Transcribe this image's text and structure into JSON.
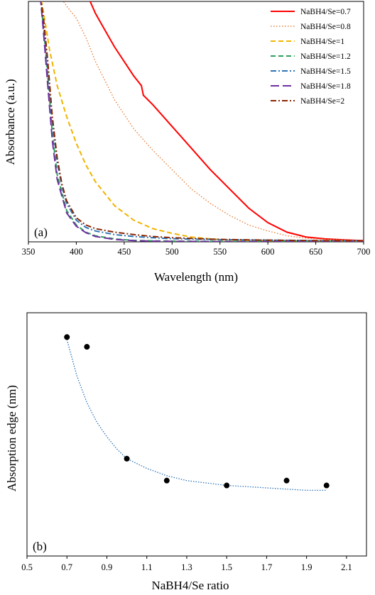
{
  "chart_data": [
    {
      "type": "line",
      "panel_label": "(a)",
      "xlabel": "Wavelength (nm)",
      "ylabel": "Absorbance (a.u.)",
      "xlim": [
        350,
        700
      ],
      "x_ticks": [
        "350",
        "400",
        "450",
        "500",
        "550",
        "600",
        "650",
        "700"
      ],
      "y_ticks": [],
      "grid": false,
      "legend_position": "top-right",
      "series": [
        {
          "name": "NaBH4/Se=0.7",
          "color": "#ff0000",
          "dash": "solid",
          "x": [
            362,
            365,
            370,
            380,
            390,
            405,
            410,
            420,
            430,
            440,
            450,
            460,
            468,
            470,
            480,
            500,
            520,
            540,
            560,
            580,
            600,
            620,
            640,
            660,
            680,
            700
          ],
          "y": [
            1.06,
            1.05,
            1.06,
            1.06,
            1.05,
            1.06,
            1.04,
            0.95,
            0.88,
            0.81,
            0.75,
            0.69,
            0.65,
            0.61,
            0.57,
            0.48,
            0.39,
            0.3,
            0.22,
            0.14,
            0.08,
            0.04,
            0.02,
            0.012,
            0.008,
            0.005
          ]
        },
        {
          "name": "NaBH4/Se=0.8",
          "color": "#e8823c",
          "dash": "dotted",
          "x": [
            355,
            360,
            370,
            375,
            380,
            390,
            400,
            410,
            420,
            440,
            460,
            480,
            500,
            520,
            540,
            560,
            580,
            600,
            620,
            640,
            660,
            700
          ],
          "y": [
            1.05,
            1.04,
            1.05,
            1.02,
            1.04,
            0.98,
            0.93,
            0.85,
            0.75,
            0.59,
            0.47,
            0.38,
            0.3,
            0.22,
            0.16,
            0.11,
            0.07,
            0.045,
            0.025,
            0.015,
            0.01,
            0.005
          ]
        },
        {
          "name": "NaBH4/Se=1",
          "color": "#f0b400",
          "dash": "dashed",
          "x": [
            355,
            362,
            368,
            372,
            380,
            390,
            400,
            410,
            420,
            440,
            460,
            480,
            500,
            520,
            540,
            560,
            580,
            600,
            650,
            700
          ],
          "y": [
            1.05,
            1.04,
            0.9,
            0.8,
            0.65,
            0.52,
            0.41,
            0.32,
            0.25,
            0.15,
            0.09,
            0.055,
            0.035,
            0.02,
            0.012,
            0.008,
            0.006,
            0.005,
            0.004,
            0.003
          ]
        },
        {
          "name": "NaBH4/Se=1.2",
          "color": "#2ca05a",
          "dash": "dashed",
          "x": [
            355,
            362,
            366,
            370,
            375,
            380,
            390,
            400,
            410,
            420,
            440,
            460,
            480,
            500,
            550,
            600,
            650,
            700
          ],
          "y": [
            1.05,
            1.04,
            0.88,
            0.7,
            0.45,
            0.28,
            0.13,
            0.07,
            0.04,
            0.025,
            0.012,
            0.006,
            0.004,
            0.003,
            0.002,
            0.002,
            0.002,
            0.002
          ]
        },
        {
          "name": "NaBH4/Se=1.5",
          "color": "#2e75b6",
          "dash": "dashdot",
          "x": [
            355,
            362,
            366,
            370,
            375,
            380,
            385,
            390,
            400,
            410,
            420,
            440,
            460,
            480,
            500,
            550,
            600,
            650,
            700
          ],
          "y": [
            1.05,
            1.04,
            0.9,
            0.73,
            0.5,
            0.33,
            0.23,
            0.16,
            0.09,
            0.06,
            0.045,
            0.03,
            0.022,
            0.017,
            0.013,
            0.009,
            0.007,
            0.005,
            0.004
          ]
        },
        {
          "name": "NaBH4/Se=1.8",
          "color": "#7030a0",
          "dash": "longdash",
          "x": [
            355,
            362,
            366,
            370,
            375,
            380,
            390,
            400,
            410,
            420,
            440,
            460,
            480,
            500,
            550,
            600,
            650,
            700
          ],
          "y": [
            1.05,
            1.04,
            0.86,
            0.66,
            0.42,
            0.26,
            0.12,
            0.065,
            0.038,
            0.022,
            0.01,
            0.005,
            0.003,
            0.002,
            0.001,
            0.001,
            0.001,
            0.001
          ]
        },
        {
          "name": "NaBH4/Se=2",
          "color": "#8b2500",
          "dash": "dashdot",
          "x": [
            355,
            362,
            366,
            370,
            375,
            380,
            385,
            390,
            400,
            410,
            420,
            440,
            460,
            480,
            500,
            550,
            600,
            650,
            700
          ],
          "y": [
            1.05,
            1.04,
            0.92,
            0.76,
            0.52,
            0.35,
            0.24,
            0.17,
            0.1,
            0.07,
            0.055,
            0.04,
            0.03,
            0.022,
            0.017,
            0.01,
            0.007,
            0.005,
            0.004
          ]
        }
      ]
    },
    {
      "type": "scatter",
      "panel_label": "(b)",
      "xlabel": "NaBH4/Se ratio",
      "ylabel": "Absorption edge  (nm)",
      "xlim": [
        0.5,
        2.2
      ],
      "x_ticks": [
        "0.5",
        "0.7",
        "0.9",
        "1.1",
        "1.3",
        "1.5",
        "1.7",
        "1.9",
        "2.1"
      ],
      "y_ticks": [],
      "grid": false,
      "points": {
        "x": [
          0.7,
          0.8,
          1.0,
          1.2,
          1.5,
          1.8,
          2.0
        ],
        "y": [
          0.9,
          0.86,
          0.4,
          0.31,
          0.29,
          0.31,
          0.29
        ],
        "color": "#000000"
      },
      "trendline": {
        "style": "dotted",
        "color": "#2e75b6",
        "x": [
          0.7,
          0.75,
          0.8,
          0.85,
          0.9,
          0.95,
          1.0,
          1.1,
          1.2,
          1.3,
          1.4,
          1.5,
          1.6,
          1.7,
          1.8,
          1.9,
          2.0
        ],
        "y": [
          0.89,
          0.74,
          0.63,
          0.55,
          0.49,
          0.44,
          0.4,
          0.36,
          0.33,
          0.31,
          0.3,
          0.29,
          0.285,
          0.28,
          0.275,
          0.27,
          0.27
        ]
      }
    }
  ]
}
